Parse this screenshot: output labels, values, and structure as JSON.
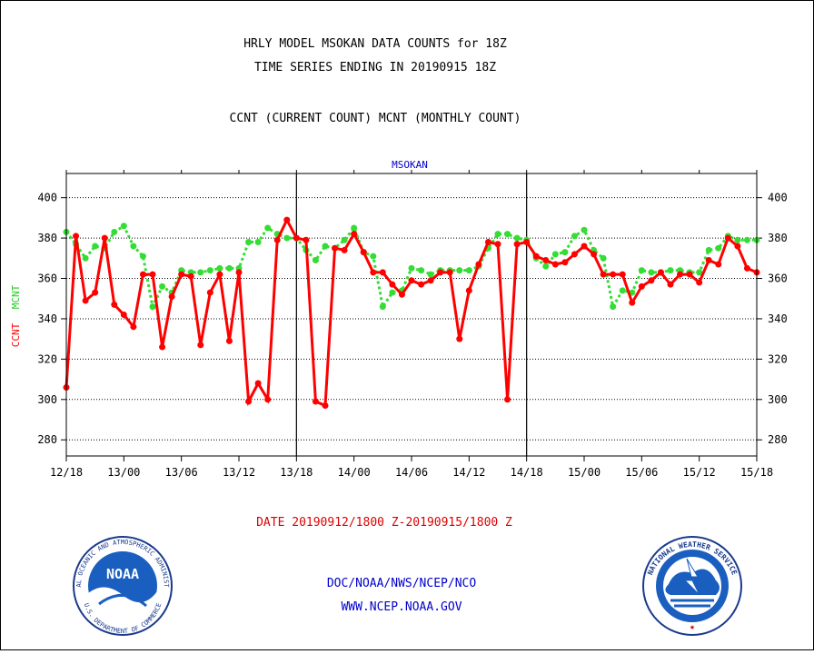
{
  "titles": {
    "line1": "HRLY MODEL MSOKAN DATA COUNTS for 18Z",
    "line2": "TIME SERIES ENDING IN 20190915 18Z",
    "line3": "CCNT (CURRENT COUNT) MCNT (MONTHLY COUNT)"
  },
  "chart_label": "MSOKAN",
  "y_label_ccnt": "CCNT",
  "y_label_mcnt": "MCNT",
  "date_range": "DATE 20190912/1800 Z-20190915/1800 Z",
  "footer": {
    "line1": "DOC/NOAA/NWS/NCEP/NCO",
    "line2": "WWW.NCEP.NOAA.GOV"
  },
  "logos": {
    "noaa_text": "NOAA",
    "noaa_ring": "NATIONAL OCEANIC AND ATMOSPHERIC ADMINISTRATION",
    "noaa_ring_bottom": "U.S. DEPARTMENT OF COMMERCE",
    "nws_ring": "NATIONAL WEATHER SERVICE"
  },
  "colors": {
    "ccnt": "#ff0000",
    "mcnt": "#33dd33",
    "title": "#000000",
    "chart_label": "#0000cc",
    "footer": "#0000cc",
    "date": "#dd0000"
  },
  "chart_data": {
    "type": "line",
    "x_unit": "hours from 12/18",
    "xlim": [
      0,
      72
    ],
    "ylim": [
      272,
      412
    ],
    "yticks": [
      280,
      300,
      320,
      340,
      360,
      380,
      400
    ],
    "xtick_hours": [
      0,
      6,
      12,
      18,
      24,
      30,
      36,
      42,
      48,
      54,
      60,
      66,
      72
    ],
    "xtick_labels": [
      "12/18",
      "13/00",
      "13/06",
      "13/12",
      "13/18",
      "14/00",
      "14/06",
      "14/12",
      "14/18",
      "15/00",
      "15/06",
      "15/12",
      "15/18"
    ],
    "day_dividers": [
      24,
      48
    ],
    "grid": true,
    "series": [
      {
        "name": "CCNT",
        "style": "solid",
        "values": [
          306,
          381,
          349,
          353,
          380,
          347,
          342,
          336,
          362,
          362,
          326,
          351,
          362,
          361,
          327,
          353,
          362,
          329,
          363,
          299,
          308,
          300,
          379,
          389,
          380,
          379,
          299,
          297,
          375,
          374,
          382,
          373,
          363,
          363,
          357,
          352,
          359,
          357,
          359,
          363,
          363,
          330,
          354,
          367,
          378,
          377,
          300,
          377,
          378,
          371,
          369,
          367,
          368,
          372,
          376,
          372,
          362,
          362,
          362,
          348,
          356,
          359,
          363,
          357,
          362,
          362,
          358,
          369,
          367,
          380,
          376,
          365,
          363
        ]
      },
      {
        "name": "MCNT",
        "style": "dotted",
        "values": [
          383,
          377,
          370,
          376,
          375,
          383,
          386,
          376,
          371,
          346,
          356,
          353,
          364,
          363,
          363,
          364,
          365,
          365,
          365,
          378,
          378,
          385,
          382,
          380,
          380,
          374,
          369,
          376,
          375,
          379,
          385,
          373,
          371,
          346,
          353,
          354,
          365,
          364,
          362,
          364,
          364,
          364,
          364,
          366,
          375,
          382,
          382,
          380,
          379,
          370,
          366,
          372,
          373,
          381,
          384,
          374,
          370,
          346,
          354,
          353,
          364,
          363,
          363,
          364,
          364,
          363,
          363,
          374,
          375,
          381,
          379,
          379,
          379
        ]
      }
    ]
  }
}
